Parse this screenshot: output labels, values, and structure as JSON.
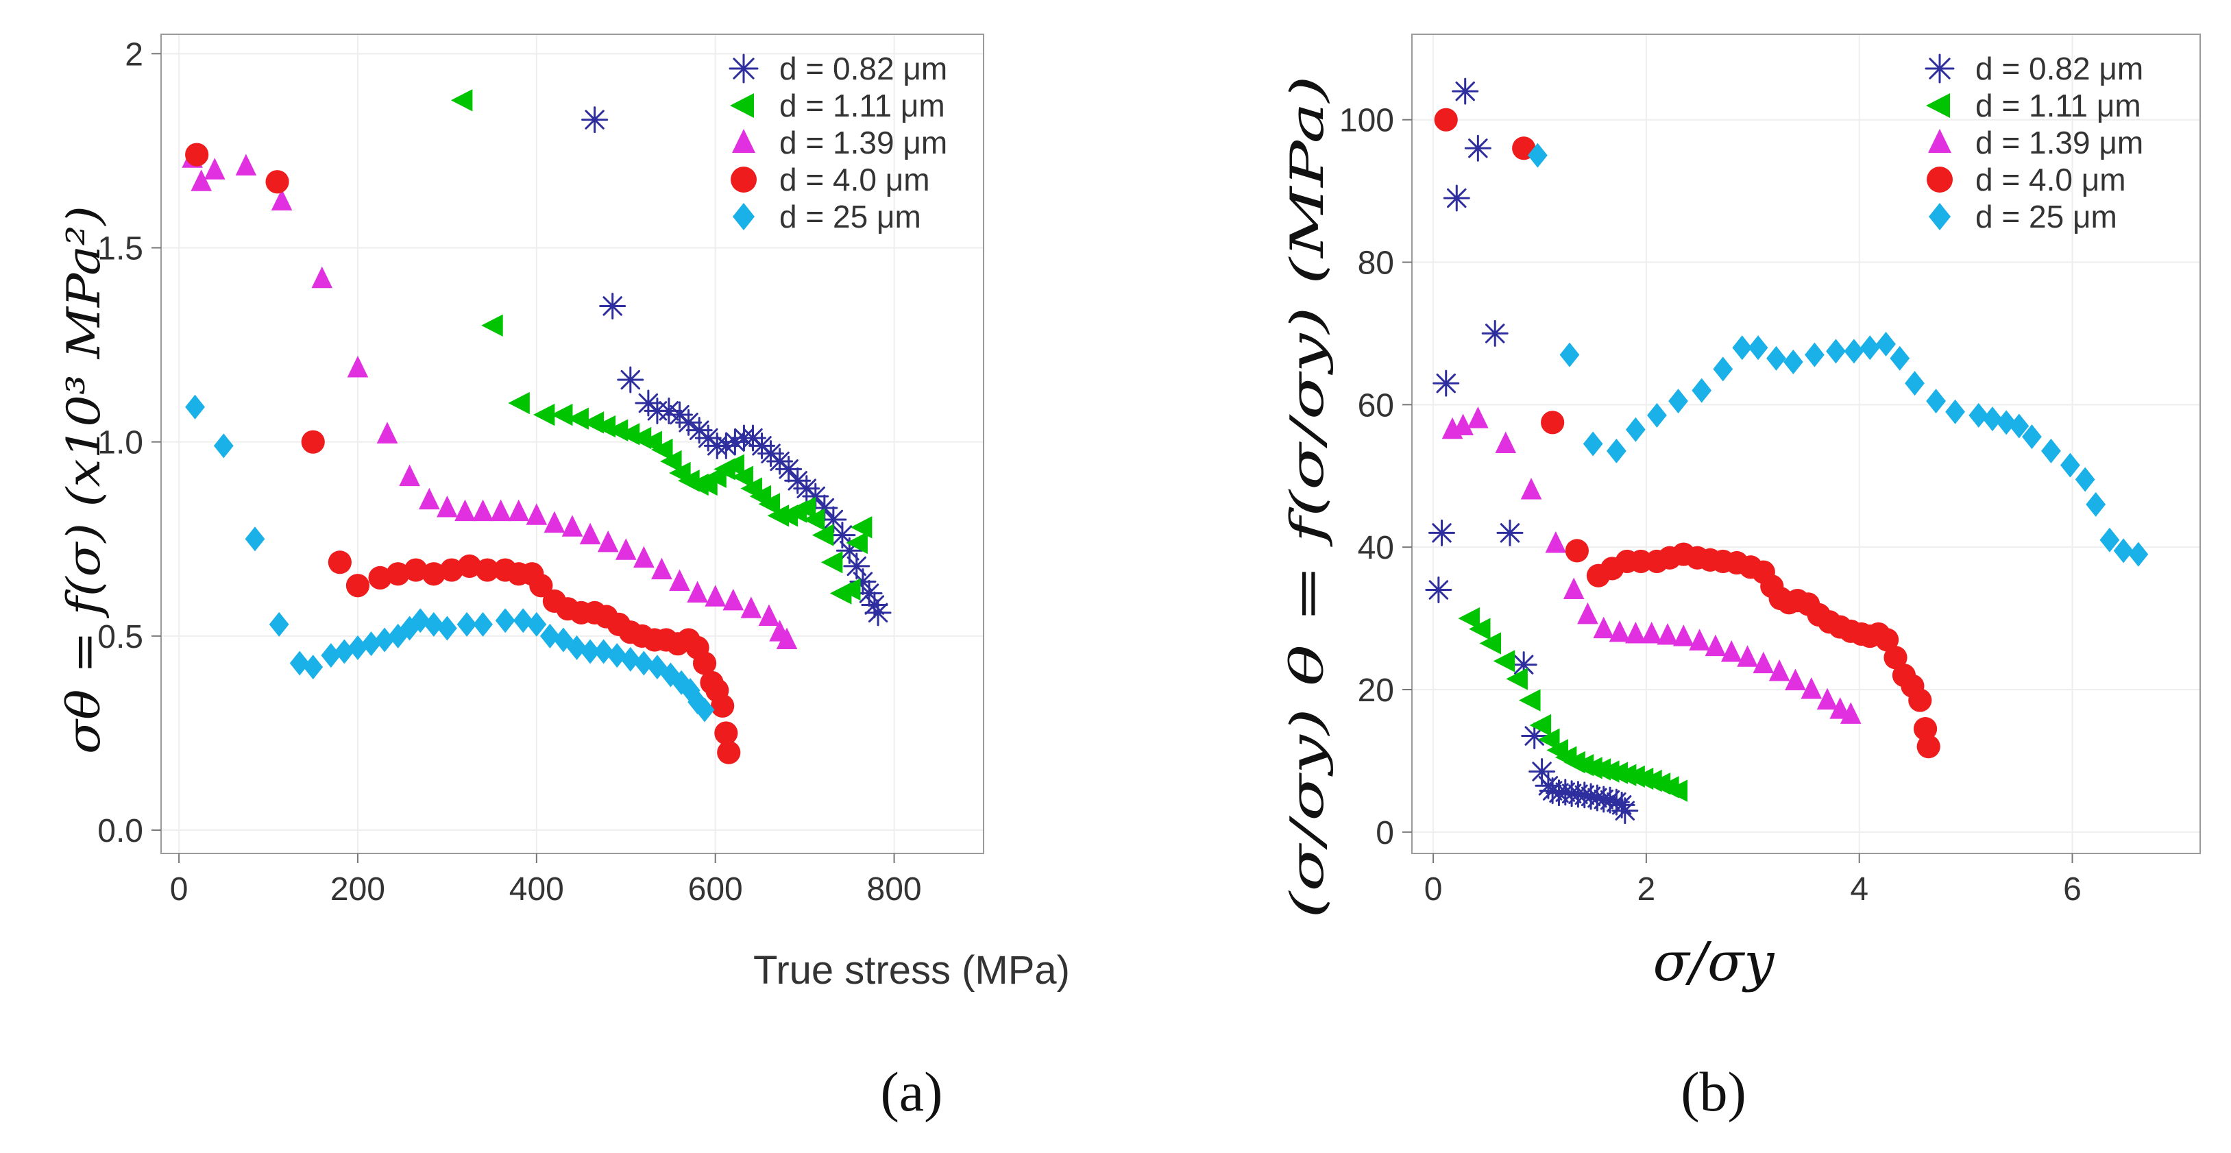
{
  "chart_data": [
    {
      "type": "scatter",
      "panel_label": "(a)",
      "xlabel": "True stress (MPa)",
      "ylabel": "σθ = f(σ) (x10³ MPa²)",
      "xlim": [
        -20,
        900
      ],
      "ylim": [
        -0.06,
        2.05
      ],
      "xticks": [
        0,
        200,
        400,
        600,
        800
      ],
      "yticks": [
        0.0,
        0.5,
        1.0,
        1.5,
        2.0
      ],
      "ytick_labels": [
        "0.0",
        "0.5",
        "1.0",
        "1.5",
        "2"
      ],
      "legend_position": "top-right",
      "series": [
        {
          "name": "d = 0.82 μm",
          "color": "#2e2e9e",
          "marker": "asterisk",
          "x": [
            465,
            485,
            505,
            525,
            535,
            548,
            560,
            570,
            582,
            592,
            602,
            612,
            622,
            632,
            642,
            652,
            662,
            672,
            682,
            692,
            702,
            712,
            722,
            732,
            742,
            750,
            758,
            765,
            772,
            778,
            782
          ],
          "y": [
            1.83,
            1.35,
            1.16,
            1.1,
            1.08,
            1.08,
            1.07,
            1.05,
            1.03,
            1.01,
            0.99,
            0.99,
            1.0,
            1.01,
            1.01,
            0.99,
            0.97,
            0.95,
            0.93,
            0.9,
            0.88,
            0.86,
            0.83,
            0.8,
            0.76,
            0.72,
            0.68,
            0.64,
            0.61,
            0.58,
            0.56
          ]
        },
        {
          "name": "d = 1.11 μm",
          "color": "#00c400",
          "marker": "triangle-left",
          "x": [
            318,
            352,
            382,
            410,
            430,
            448,
            465,
            478,
            492,
            505,
            518,
            530,
            542,
            552,
            562,
            572,
            582,
            592,
            602,
            612,
            622,
            632,
            642,
            652,
            662,
            672,
            682,
            692,
            702,
            712,
            722,
            732,
            742,
            752,
            760,
            765
          ],
          "y": [
            1.88,
            1.3,
            1.1,
            1.07,
            1.07,
            1.06,
            1.05,
            1.04,
            1.03,
            1.02,
            1.01,
            1.0,
            0.98,
            0.95,
            0.92,
            0.9,
            0.89,
            0.89,
            0.91,
            0.93,
            0.94,
            0.91,
            0.88,
            0.86,
            0.84,
            0.81,
            0.81,
            0.82,
            0.83,
            0.8,
            0.76,
            0.69,
            0.61,
            0.62,
            0.74,
            0.78
          ]
        },
        {
          "name": "d = 1.39 μm",
          "color": "#e030e0",
          "marker": "triangle-up",
          "x": [
            15,
            25,
            40,
            75,
            115,
            160,
            200,
            233,
            258,
            280,
            300,
            320,
            340,
            360,
            380,
            400,
            420,
            440,
            460,
            480,
            500,
            520,
            540,
            560,
            580,
            600,
            620,
            640,
            660,
            672,
            680
          ],
          "y": [
            1.73,
            1.67,
            1.7,
            1.71,
            1.62,
            1.42,
            1.19,
            1.02,
            0.91,
            0.85,
            0.83,
            0.82,
            0.82,
            0.82,
            0.82,
            0.81,
            0.79,
            0.78,
            0.76,
            0.74,
            0.72,
            0.7,
            0.67,
            0.64,
            0.61,
            0.6,
            0.59,
            0.57,
            0.55,
            0.51,
            0.49
          ]
        },
        {
          "name": "d = 4.0 μm",
          "color": "#ee1c1c",
          "marker": "circle",
          "x": [
            20,
            110,
            150,
            180,
            200,
            225,
            245,
            265,
            285,
            305,
            325,
            345,
            365,
            380,
            395,
            405,
            420,
            435,
            450,
            465,
            478,
            492,
            505,
            518,
            532,
            545,
            558,
            570,
            580,
            588,
            596,
            602,
            608,
            612,
            615
          ],
          "y": [
            1.74,
            1.67,
            1.0,
            0.69,
            0.63,
            0.65,
            0.66,
            0.67,
            0.66,
            0.67,
            0.68,
            0.67,
            0.67,
            0.66,
            0.66,
            0.63,
            0.59,
            0.57,
            0.56,
            0.56,
            0.55,
            0.53,
            0.51,
            0.5,
            0.49,
            0.49,
            0.48,
            0.49,
            0.47,
            0.43,
            0.38,
            0.36,
            0.32,
            0.25,
            0.2
          ]
        },
        {
          "name": "d = 25 μm",
          "color": "#1ab0e8",
          "marker": "diamond",
          "x": [
            18,
            50,
            85,
            112,
            135,
            150,
            170,
            185,
            200,
            215,
            230,
            245,
            258,
            270,
            285,
            300,
            322,
            340,
            365,
            385,
            400,
            415,
            430,
            445,
            460,
            475,
            490,
            505,
            520,
            535,
            550,
            562,
            572,
            580,
            588
          ],
          "y": [
            1.09,
            0.99,
            0.75,
            0.53,
            0.43,
            0.42,
            0.45,
            0.46,
            0.47,
            0.48,
            0.49,
            0.5,
            0.52,
            0.54,
            0.53,
            0.52,
            0.53,
            0.53,
            0.54,
            0.54,
            0.53,
            0.5,
            0.49,
            0.47,
            0.46,
            0.46,
            0.45,
            0.44,
            0.43,
            0.42,
            0.4,
            0.38,
            0.36,
            0.33,
            0.31
          ]
        }
      ]
    },
    {
      "type": "scatter",
      "panel_label": "(b)",
      "xlabel": "σ/σy",
      "ylabel": "(σ/σy) θ = f(σ/σy) (MPa)",
      "xlim": [
        -0.2,
        7.2
      ],
      "ylim": [
        -3,
        112
      ],
      "xticks": [
        0,
        2,
        4,
        6
      ],
      "yticks": [
        0,
        20,
        40,
        60,
        80,
        100
      ],
      "legend_position": "top-right",
      "series": [
        {
          "name": "d = 0.82 μm",
          "color": "#2e2e9e",
          "marker": "asterisk",
          "x": [
            0.05,
            0.08,
            0.12,
            0.22,
            0.3,
            0.42,
            0.58,
            0.72,
            0.85,
            0.95,
            1.02,
            1.08,
            1.12,
            1.18,
            1.24,
            1.3,
            1.36,
            1.42,
            1.48,
            1.54,
            1.6,
            1.66,
            1.72,
            1.77,
            1.8
          ],
          "y": [
            34,
            42,
            63,
            89,
            104,
            96,
            70,
            42,
            23.5,
            13.5,
            8.5,
            6.5,
            5.8,
            5.5,
            5.6,
            5.4,
            5.3,
            5.2,
            5.0,
            4.8,
            4.6,
            4.5,
            4.2,
            3.8,
            3.0
          ]
        },
        {
          "name": "d = 1.11 μm",
          "color": "#00c400",
          "marker": "triangle-left",
          "x": [
            0.35,
            0.45,
            0.55,
            0.68,
            0.8,
            0.92,
            1.02,
            1.1,
            1.18,
            1.26,
            1.34,
            1.42,
            1.5,
            1.58,
            1.66,
            1.74,
            1.82,
            1.9,
            1.98,
            2.06,
            2.14,
            2.22,
            2.3
          ],
          "y": [
            30,
            28.5,
            26.5,
            24,
            21.5,
            18.5,
            15,
            13,
            11.5,
            10.5,
            9.8,
            9.4,
            9.0,
            8.8,
            8.5,
            8.3,
            8.0,
            7.8,
            7.5,
            7.2,
            6.8,
            6.3,
            5.8
          ]
        },
        {
          "name": "d = 1.39 μm",
          "color": "#e030e0",
          "marker": "triangle-up",
          "x": [
            0.18,
            0.28,
            0.42,
            0.68,
            0.92,
            1.15,
            1.32,
            1.45,
            1.6,
            1.75,
            1.9,
            2.05,
            2.2,
            2.35,
            2.5,
            2.65,
            2.8,
            2.95,
            3.1,
            3.25,
            3.4,
            3.55,
            3.7,
            3.82,
            3.92
          ],
          "y": [
            56.5,
            57,
            58,
            54.5,
            48,
            40.5,
            34,
            30.5,
            28.5,
            28,
            27.8,
            27.8,
            27.6,
            27.4,
            26.8,
            26,
            25.2,
            24.5,
            23.6,
            22.5,
            21.2,
            20,
            18.5,
            17.2,
            16.5
          ]
        },
        {
          "name": "d = 4.0 μm",
          "color": "#ee1c1c",
          "marker": "circle",
          "x": [
            0.12,
            0.85,
            1.12,
            1.35,
            1.55,
            1.68,
            1.82,
            1.95,
            2.1,
            2.22,
            2.35,
            2.48,
            2.6,
            2.72,
            2.85,
            2.98,
            3.1,
            3.18,
            3.26,
            3.34,
            3.42,
            3.52,
            3.62,
            3.72,
            3.82,
            3.92,
            4.02,
            4.1,
            4.18,
            4.26,
            4.34,
            4.42,
            4.5,
            4.57,
            4.62,
            4.65
          ],
          "y": [
            100,
            96,
            57.5,
            39.5,
            36,
            37,
            38,
            38,
            38,
            38.5,
            39,
            38.5,
            38.2,
            38,
            37.8,
            37.2,
            36.5,
            34.5,
            32.8,
            32.2,
            32.5,
            32,
            30.5,
            29.5,
            28.8,
            28.2,
            27.8,
            27.5,
            27.8,
            27,
            24.5,
            22,
            20.5,
            18.5,
            14.5,
            12
          ]
        },
        {
          "name": "d = 25 μm",
          "color": "#1ab0e8",
          "marker": "diamond",
          "x": [
            0.98,
            1.28,
            1.5,
            1.72,
            1.9,
            2.1,
            2.3,
            2.52,
            2.72,
            2.9,
            3.05,
            3.22,
            3.38,
            3.58,
            3.78,
            3.95,
            4.1,
            4.25,
            4.38,
            4.52,
            4.72,
            4.9,
            5.12,
            5.25,
            5.38,
            5.5,
            5.62,
            5.8,
            5.98,
            6.12,
            6.22,
            6.35,
            6.48,
            6.62
          ],
          "y": [
            95,
            67,
            54.5,
            53.5,
            56.5,
            58.5,
            60.5,
            62,
            65,
            68,
            68,
            66.5,
            66,
            67,
            67.5,
            67.5,
            68,
            68.5,
            66.5,
            63,
            60.5,
            59,
            58.5,
            58,
            57.5,
            57,
            55.5,
            53.5,
            51.5,
            49.5,
            46,
            41,
            39.5,
            39
          ]
        }
      ]
    }
  ]
}
